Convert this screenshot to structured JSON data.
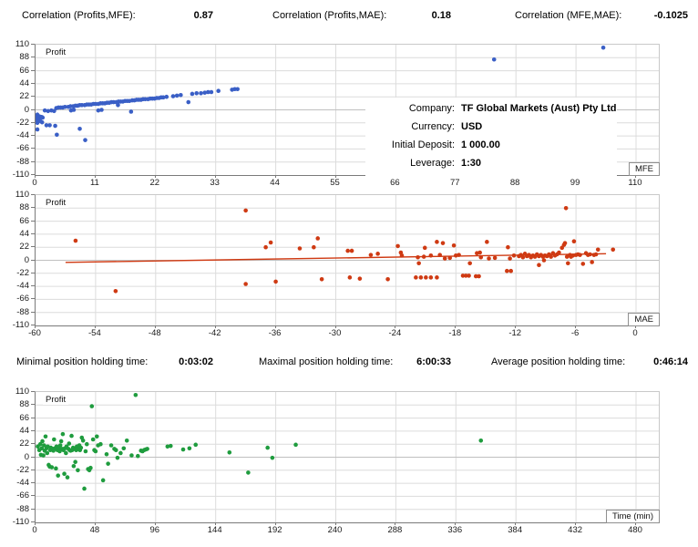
{
  "header_correlations": {
    "items": [
      {
        "label": "Correlation (Profits,MFE):",
        "value": "0.87"
      },
      {
        "label": "Correlation (Profits,MAE):",
        "value": "0.18"
      },
      {
        "label": "Correlation (MFE,MAE):",
        "value": "-0.1025"
      }
    ]
  },
  "header_holding": {
    "items": [
      {
        "label": "Minimal position holding time:",
        "value": "0:03:02"
      },
      {
        "label": "Maximal position holding time:",
        "value": "6:00:33"
      },
      {
        "label": "Average position holding time:",
        "value": "0:46:14"
      }
    ]
  },
  "info_box": {
    "rows": [
      {
        "label": "Company:",
        "value": "TF Global Markets (Aust) Pty Ltd"
      },
      {
        "label": "Currency:",
        "value": "USD"
      },
      {
        "label": "Initial Deposit:",
        "value": "1 000.00"
      },
      {
        "label": "Leverage:",
        "value": "1:30"
      }
    ]
  },
  "colors": {
    "mfe_points": "#3a5fc6",
    "mae_points": "#cf3a13",
    "time_points": "#1f9c3e",
    "grid": "#dcdcdc",
    "zero_line": "#c0c0c0",
    "axis": "#7a7a7a"
  },
  "chart_data": [
    {
      "type": "scatter",
      "name": "profit-vs-mfe",
      "inner_label": "Profit",
      "corner_label": "MFE",
      "xlabel": "MFE",
      "ylabel": "Profit",
      "xlim": [
        0,
        110
      ],
      "ylim": [
        -110,
        110
      ],
      "x_ticks": [
        0,
        11,
        22,
        33,
        44,
        55,
        66,
        77,
        88,
        99,
        110
      ],
      "y_ticks": [
        110,
        88,
        66,
        44,
        22,
        0,
        -22,
        -44,
        -66,
        -88,
        -110
      ],
      "grid": true,
      "points": [
        [
          0,
          -8
        ],
        [
          0.1,
          -10
        ],
        [
          0,
          -12
        ],
        [
          0.1,
          -14
        ],
        [
          0,
          -16
        ],
        [
          0.1,
          -18
        ],
        [
          0.2,
          -20
        ],
        [
          0.2,
          -22
        ],
        [
          0.4,
          -10
        ],
        [
          0.5,
          -11
        ],
        [
          0.7,
          -11
        ],
        [
          0.9,
          -12
        ],
        [
          1.1,
          -12
        ],
        [
          1.3,
          -13
        ],
        [
          0.4,
          -15
        ],
        [
          0.6,
          -17
        ],
        [
          0.9,
          -19
        ],
        [
          1.2,
          -21
        ],
        [
          0.2,
          -33
        ],
        [
          2,
          -26
        ],
        [
          2.6,
          -26
        ],
        [
          3.6,
          -27
        ],
        [
          3.9,
          -42
        ],
        [
          8.1,
          -32
        ],
        [
          9.1,
          -51
        ],
        [
          1.7,
          -1
        ],
        [
          2.3,
          -2
        ],
        [
          2.9,
          -1
        ],
        [
          3.4,
          -2
        ],
        [
          3.8,
          3
        ],
        [
          4.2,
          4
        ],
        [
          4.6,
          4
        ],
        [
          5,
          4
        ],
        [
          5.4,
          5
        ],
        [
          6,
          5
        ],
        [
          6.4,
          6
        ],
        [
          6.9,
          6
        ],
        [
          7.3,
          7
        ],
        [
          7.7,
          7
        ],
        [
          8.1,
          8
        ],
        [
          8.5,
          8
        ],
        [
          9,
          8
        ],
        [
          9.4,
          9
        ],
        [
          9.8,
          9
        ],
        [
          10.2,
          9
        ],
        [
          10.6,
          10
        ],
        [
          11,
          10
        ],
        [
          11.5,
          10
        ],
        [
          11.9,
          11
        ],
        [
          12.3,
          11
        ],
        [
          12.7,
          11
        ],
        [
          13.1,
          12
        ],
        [
          13.5,
          12
        ],
        [
          13.9,
          13
        ],
        [
          14.3,
          13
        ],
        [
          14.8,
          13
        ],
        [
          15.2,
          14
        ],
        [
          15.6,
          14
        ],
        [
          16,
          14
        ],
        [
          16.4,
          15
        ],
        [
          16.8,
          15
        ],
        [
          17.2,
          15
        ],
        [
          17.7,
          16
        ],
        [
          18.1,
          16
        ],
        [
          18.5,
          17
        ],
        [
          18.9,
          17
        ],
        [
          19.3,
          17
        ],
        [
          19.7,
          18
        ],
        [
          20.1,
          18
        ],
        [
          20.6,
          18
        ],
        [
          21,
          19
        ],
        [
          21.4,
          19
        ],
        [
          21.8,
          19
        ],
        [
          22.2,
          20
        ],
        [
          22.6,
          20
        ],
        [
          23,
          21
        ],
        [
          23.4,
          21
        ],
        [
          25.2,
          23
        ],
        [
          25.9,
          24
        ],
        [
          26.6,
          25
        ],
        [
          28.7,
          27
        ],
        [
          29.5,
          28
        ],
        [
          30.3,
          28
        ],
        [
          31,
          29
        ],
        [
          31.6,
          30
        ],
        [
          32.2,
          30
        ],
        [
          33.5,
          32
        ],
        [
          36,
          34
        ],
        [
          36.5,
          35
        ],
        [
          37,
          35
        ],
        [
          6.5,
          -1
        ],
        [
          7,
          0
        ],
        [
          11.5,
          -1
        ],
        [
          12.1,
          0
        ],
        [
          15.1,
          8
        ],
        [
          17.5,
          -3
        ],
        [
          28,
          13
        ],
        [
          24,
          22
        ],
        [
          84,
          85
        ],
        [
          104,
          105
        ]
      ]
    },
    {
      "type": "scatter",
      "name": "profit-vs-mae",
      "inner_label": "Profit",
      "corner_label": "MAE",
      "xlabel": "MAE",
      "ylabel": "Profit",
      "xlim": [
        -60,
        0
      ],
      "ylim": [
        -110,
        110
      ],
      "x_ticks": [
        -60,
        -54,
        -48,
        -42,
        -36,
        -30,
        -24,
        -18,
        -12,
        -6,
        0
      ],
      "y_ticks": [
        110,
        88,
        66,
        44,
        22,
        0,
        -22,
        -44,
        -66,
        -88,
        -110
      ],
      "grid": true,
      "trend_line": [
        [
          -57,
          -3.5
        ],
        [
          -3,
          11
        ]
      ],
      "points": [
        [
          -56,
          33
        ],
        [
          -52,
          -52
        ],
        [
          -39,
          84
        ],
        [
          -39,
          -40
        ],
        [
          -37,
          22
        ],
        [
          -36.5,
          30
        ],
        [
          -36,
          -36
        ],
        [
          -33.6,
          20
        ],
        [
          -32.2,
          22
        ],
        [
          -31.8,
          37
        ],
        [
          -31.4,
          -32
        ],
        [
          -28.8,
          16
        ],
        [
          -28.4,
          16
        ],
        [
          -28.6,
          -29
        ],
        [
          -27.6,
          -31
        ],
        [
          -26.5,
          9
        ],
        [
          -25.8,
          11
        ],
        [
          -24.8,
          -32
        ],
        [
          -23.8,
          24
        ],
        [
          -23.5,
          13
        ],
        [
          -23.4,
          8
        ],
        [
          -21.8,
          5
        ],
        [
          -21.2,
          6
        ],
        [
          -22,
          -29
        ],
        [
          -21.5,
          -29
        ],
        [
          -21,
          -29
        ],
        [
          -20.5,
          -29
        ],
        [
          -19.9,
          -29
        ],
        [
          -21.7,
          -5
        ],
        [
          -21.1,
          21
        ],
        [
          -20.5,
          8
        ],
        [
          -19.9,
          31
        ],
        [
          -19.6,
          9
        ],
        [
          -19.3,
          29
        ],
        [
          -19.1,
          3
        ],
        [
          -18.6,
          4
        ],
        [
          -18.2,
          25
        ],
        [
          -18,
          8
        ],
        [
          -17.7,
          9
        ],
        [
          -17.3,
          -26
        ],
        [
          -17,
          -26
        ],
        [
          -16.7,
          -26
        ],
        [
          -16.6,
          -5
        ],
        [
          -16,
          -27
        ],
        [
          -15.7,
          -27
        ],
        [
          -15.9,
          12
        ],
        [
          -15.6,
          13
        ],
        [
          -15.5,
          5
        ],
        [
          -14.9,
          31
        ],
        [
          -14.7,
          3
        ],
        [
          -14.1,
          4
        ],
        [
          -12.8,
          22
        ],
        [
          -12.9,
          -18
        ],
        [
          -12.5,
          -18
        ],
        [
          -12.6,
          3
        ],
        [
          -12.2,
          8
        ],
        [
          -11.7,
          7
        ],
        [
          -11.5,
          9
        ],
        [
          -11.3,
          5
        ],
        [
          -11.1,
          11
        ],
        [
          -10.9,
          7
        ],
        [
          -10.7,
          9
        ],
        [
          -10.5,
          5
        ],
        [
          -10.3,
          8
        ],
        [
          -10.1,
          6
        ],
        [
          -9.9,
          10
        ],
        [
          -9.7,
          7
        ],
        [
          -9.5,
          9
        ],
        [
          -9.3,
          6
        ],
        [
          -9.1,
          8
        ],
        [
          -9.7,
          -8
        ],
        [
          -9.2,
          0
        ],
        [
          -8.9,
          7
        ],
        [
          -8.7,
          10
        ],
        [
          -8.5,
          6
        ],
        [
          -8.3,
          12
        ],
        [
          -8.1,
          8
        ],
        [
          -7.9,
          10
        ],
        [
          -7.7,
          13
        ],
        [
          -7,
          88
        ],
        [
          -7.4,
          21
        ],
        [
          -7.2,
          26
        ],
        [
          -7.1,
          29
        ],
        [
          -6.9,
          6
        ],
        [
          -6.8,
          -5
        ],
        [
          -6.6,
          9
        ],
        [
          -6.5,
          6
        ],
        [
          -6.3,
          8
        ],
        [
          -6.2,
          32
        ],
        [
          -6,
          9
        ],
        [
          -5.8,
          10
        ],
        [
          -5.6,
          9
        ],
        [
          -5.3,
          -6
        ],
        [
          -5,
          12
        ],
        [
          -4.8,
          9
        ],
        [
          -4.6,
          10
        ],
        [
          -4.4,
          -3
        ],
        [
          -4.2,
          9
        ],
        [
          -4,
          10
        ],
        [
          -3.8,
          18
        ],
        [
          -2.3,
          18
        ]
      ]
    },
    {
      "type": "scatter",
      "name": "profit-vs-holding-time",
      "inner_label": "Profit",
      "corner_label": "Time (min)",
      "xlabel": "Time (min)",
      "ylabel": "Profit",
      "xlim": [
        0,
        480
      ],
      "ylim": [
        -110,
        110
      ],
      "x_ticks": [
        0,
        48,
        96,
        144,
        192,
        240,
        288,
        336,
        384,
        432,
        480
      ],
      "y_ticks": [
        110,
        88,
        66,
        44,
        22,
        0,
        -22,
        -44,
        -66,
        -88,
        -110
      ],
      "grid": true,
      "points": [
        [
          1.8,
          18
        ],
        [
          3,
          12
        ],
        [
          3.8,
          22
        ],
        [
          4.3,
          4
        ],
        [
          5,
          15
        ],
        [
          5.5,
          27
        ],
        [
          6.3,
          3
        ],
        [
          6.8,
          20
        ],
        [
          7.3,
          11
        ],
        [
          8,
          35
        ],
        [
          8.8,
          15
        ],
        [
          9.3,
          7
        ],
        [
          9.8,
          18
        ],
        [
          10.5,
          -13
        ],
        [
          11.3,
          -16
        ],
        [
          11.8,
          12
        ],
        [
          12.3,
          16
        ],
        [
          13,
          -17
        ],
        [
          13.8,
          14
        ],
        [
          14.3,
          11
        ],
        [
          14.8,
          30
        ],
        [
          15.5,
          15
        ],
        [
          16.3,
          -19
        ],
        [
          16.8,
          18
        ],
        [
          17.5,
          12
        ],
        [
          18,
          -31
        ],
        [
          18.8,
          15
        ],
        [
          19.3,
          10
        ],
        [
          19.8,
          20
        ],
        [
          20.5,
          27
        ],
        [
          21.3,
          14
        ],
        [
          21.8,
          39
        ],
        [
          22.3,
          12
        ],
        [
          23,
          -28
        ],
        [
          23.5,
          15
        ],
        [
          24.3,
          7
        ],
        [
          24.8,
          18
        ],
        [
          25.5,
          -34
        ],
        [
          26.3,
          14
        ],
        [
          26.8,
          23
        ],
        [
          27.3,
          12
        ],
        [
          28,
          11
        ],
        [
          28.8,
          36
        ],
        [
          29.3,
          12
        ],
        [
          30,
          16
        ],
        [
          30.5,
          -15
        ],
        [
          31.3,
          14
        ],
        [
          31.8,
          -8
        ],
        [
          32.5,
          12
        ],
        [
          33,
          18
        ],
        [
          33.8,
          -22
        ],
        [
          34.3,
          14
        ],
        [
          35,
          20
        ],
        [
          35.5,
          12
        ],
        [
          36.3,
          16
        ],
        [
          37,
          33
        ],
        [
          38,
          28
        ],
        [
          39,
          -53
        ],
        [
          40,
          10
        ],
        [
          41,
          22
        ],
        [
          42,
          -20
        ],
        [
          43,
          -22
        ],
        [
          44,
          -18
        ],
        [
          45,
          86
        ],
        [
          46,
          30
        ],
        [
          47,
          12
        ],
        [
          48,
          10
        ],
        [
          49,
          35
        ],
        [
          50,
          20
        ],
        [
          52,
          22
        ],
        [
          54,
          -39
        ],
        [
          56.8,
          5
        ],
        [
          58,
          -11
        ],
        [
          60.5,
          20
        ],
        [
          63,
          14
        ],
        [
          64.3,
          12
        ],
        [
          65.5,
          -1
        ],
        [
          68,
          7
        ],
        [
          70.5,
          15
        ],
        [
          73,
          28
        ],
        [
          76.8,
          3
        ],
        [
          80,
          105
        ],
        [
          81.8,
          2
        ],
        [
          84.3,
          11
        ],
        [
          85.5,
          10
        ],
        [
          86.8,
          12
        ],
        [
          88,
          13
        ],
        [
          89.3,
          14
        ],
        [
          105.5,
          18
        ],
        [
          108,
          19
        ],
        [
          118,
          13
        ],
        [
          123,
          15
        ],
        [
          128,
          21
        ],
        [
          155,
          8
        ],
        [
          170,
          -26
        ],
        [
          185.5,
          16
        ],
        [
          189.3,
          -1
        ],
        [
          208,
          21
        ],
        [
          356,
          28
        ]
      ]
    }
  ]
}
